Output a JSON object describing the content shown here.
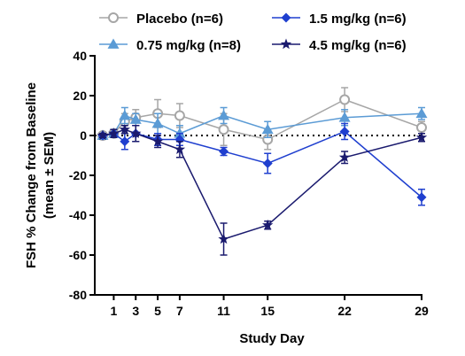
{
  "chart_data": {
    "type": "line",
    "title": "",
    "xlabel": "Study Day",
    "ylabel_lines": [
      "FSH % Change from Baseline",
      "(mean ± SEM)"
    ],
    "ylim": [
      -80,
      40
    ],
    "yticks": [
      40,
      20,
      0,
      -20,
      -40,
      -60,
      -80
    ],
    "xticks": [
      1,
      3,
      5,
      7,
      11,
      15,
      22,
      29
    ],
    "reference_line_y": 0,
    "grid": false,
    "legend_position": "top",
    "series": [
      {
        "name": "Placebo (n=6)",
        "color": "#a6a6a6",
        "marker": "open-circle",
        "x": [
          0,
          1,
          2,
          3,
          5,
          7,
          11,
          15,
          22,
          29
        ],
        "y": [
          0,
          1,
          7,
          9,
          11,
          10,
          3,
          -2,
          18,
          4
        ],
        "err": [
          1,
          2,
          4,
          4,
          7,
          6,
          8,
          5,
          6,
          3
        ]
      },
      {
        "name": "0.75 mg/kg (n=8)",
        "color": "#5b9bd5",
        "marker": "triangle",
        "x": [
          0,
          1,
          2,
          3,
          5,
          7,
          11,
          15,
          22,
          29
        ],
        "y": [
          0,
          1,
          10,
          8,
          6,
          1,
          10,
          3,
          9,
          11
        ],
        "err": [
          1,
          2,
          4,
          3,
          5,
          4,
          4,
          4,
          4,
          3
        ]
      },
      {
        "name": "1.5 mg/kg (n=6)",
        "color": "#1f3fcf",
        "marker": "diamond",
        "x": [
          0,
          1,
          2,
          3,
          5,
          7,
          11,
          15,
          22,
          29
        ],
        "y": [
          0,
          1,
          -3,
          1,
          -2,
          -2,
          -8,
          -14,
          2,
          -31
        ],
        "err": [
          1,
          2,
          4,
          4,
          3,
          3,
          2,
          5,
          4,
          4
        ]
      },
      {
        "name": "4.5 mg/kg (n=6)",
        "color": "#1a1a6e",
        "marker": "star",
        "x": [
          0,
          1,
          2,
          3,
          5,
          7,
          11,
          15,
          22,
          29
        ],
        "y": [
          0,
          1,
          3,
          1,
          -3,
          -7,
          -52,
          -45,
          -11,
          -1
        ],
        "err": [
          1,
          2,
          2,
          4,
          3,
          4,
          8,
          2,
          3,
          2
        ]
      }
    ]
  }
}
